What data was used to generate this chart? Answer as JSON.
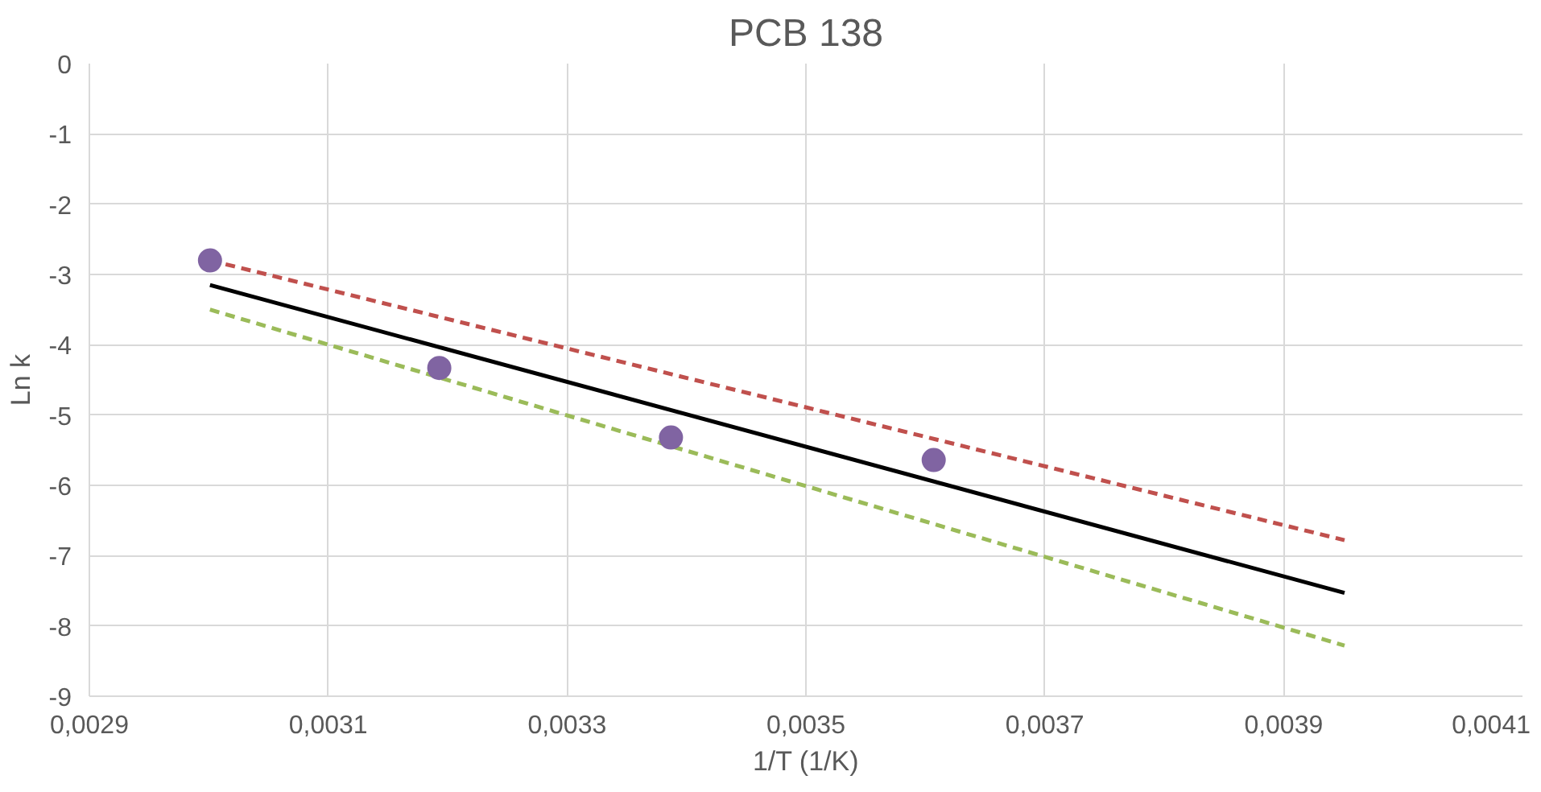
{
  "chart_data": {
    "type": "line",
    "title": "PCB 138",
    "xlabel": "1/T (1/K)",
    "ylabel": "Ln k",
    "xlim": [
      0.0029,
      0.0041
    ],
    "xticks": [
      {
        "value": 0.0029,
        "label": "0,0029"
      },
      {
        "value": 0.0031,
        "label": "0,0031"
      },
      {
        "value": 0.0033,
        "label": "0,0033"
      },
      {
        "value": 0.0035,
        "label": "0,0035"
      },
      {
        "value": 0.0037,
        "label": "0,0037"
      },
      {
        "value": 0.0039,
        "label": "0,0039"
      },
      {
        "value": 0.0041,
        "label": "0,0041"
      }
    ],
    "ylim": [
      -9,
      0
    ],
    "yticks": [
      -9,
      -8,
      -7,
      -6,
      -5,
      -4,
      -3,
      -2,
      -1,
      0
    ],
    "grid": true,
    "series": [
      {
        "color": "#000000",
        "line_style": "solid",
        "marker": "none",
        "x": [
          0.003001,
          0.003951
        ],
        "values": [
          -3.15,
          -7.53
        ]
      },
      {
        "color": "#c0504d",
        "line_style": "dashed",
        "marker": "none",
        "x": [
          0.003001,
          0.003951
        ],
        "values": [
          -2.8,
          -6.78
        ]
      },
      {
        "color": "#9bbb59",
        "line_style": "dashed",
        "marker": "none",
        "x": [
          0.003001,
          0.003951
        ],
        "values": [
          -3.5,
          -8.28
        ]
      },
      {
        "type": "scatter",
        "color": "#8064a2",
        "marker": "circle",
        "x": [
          0.003001,
          0.003193,
          0.003387,
          0.003607
        ],
        "values": [
          -2.8,
          -4.33,
          -5.32,
          -5.64
        ]
      }
    ]
  }
}
